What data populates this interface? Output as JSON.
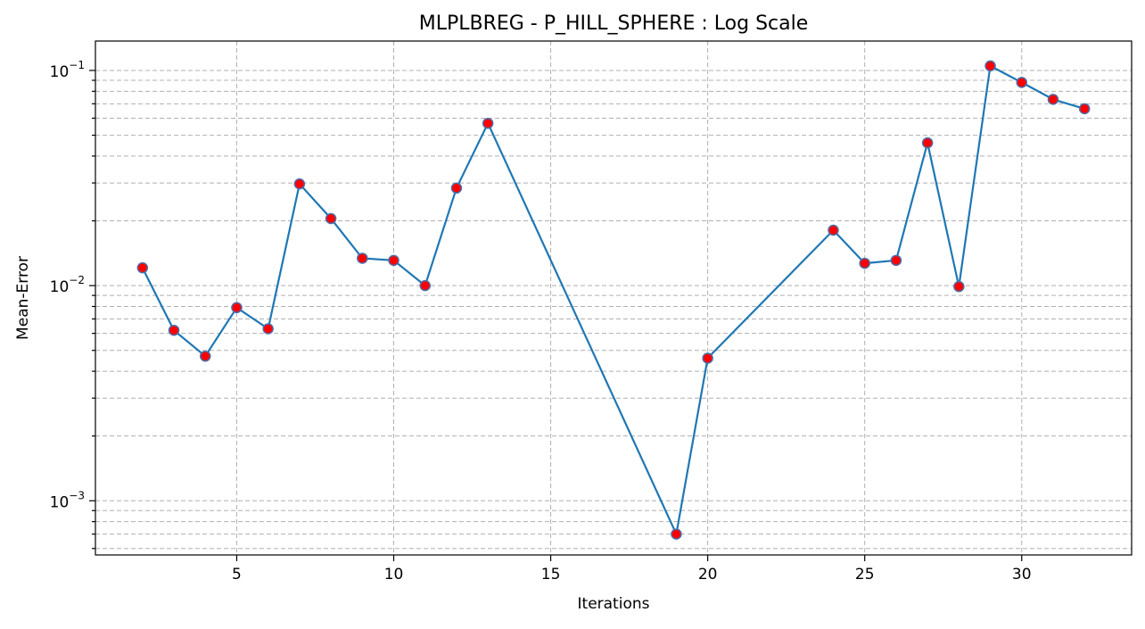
{
  "chart_data": {
    "type": "line",
    "title": "MLPLBREG - P_HILL_SPHERE : Log Scale",
    "xlabel": "Iterations",
    "ylabel": "Mean-Error",
    "y_scale": "log",
    "xlim": [
      0.5,
      33.5
    ],
    "ylim": [
      0.00056,
      0.137
    ],
    "x_ticks": [
      5,
      10,
      15,
      20,
      25,
      30
    ],
    "y_ticks": [
      {
        "value": 0.001,
        "base": "10",
        "exponent": "−3"
      },
      {
        "value": 0.01,
        "base": "10",
        "exponent": "−2"
      },
      {
        "value": 0.1,
        "base": "10",
        "exponent": "−1"
      }
    ],
    "grid": true,
    "grid_style": "dashed",
    "colors": {
      "line": "#1f77b4",
      "marker_face": "#ff0000",
      "marker_edge": "#4c6ea8",
      "grid": "#b0b0b0"
    },
    "series": [
      {
        "x": [
          2,
          3,
          4,
          5,
          6,
          7,
          8,
          9,
          10,
          11,
          12,
          13,
          19,
          20,
          24,
          25,
          26,
          27,
          28,
          29,
          30,
          31,
          32
        ],
        "values": [
          0.0121,
          0.0062,
          0.0047,
          0.0079,
          0.0063,
          0.0297,
          0.0205,
          0.0134,
          0.0131,
          0.01,
          0.0284,
          0.0568,
          0.0007,
          0.0046,
          0.0181,
          0.0127,
          0.0131,
          0.0461,
          0.0099,
          0.105,
          0.088,
          0.0734,
          0.0664
        ]
      }
    ]
  }
}
